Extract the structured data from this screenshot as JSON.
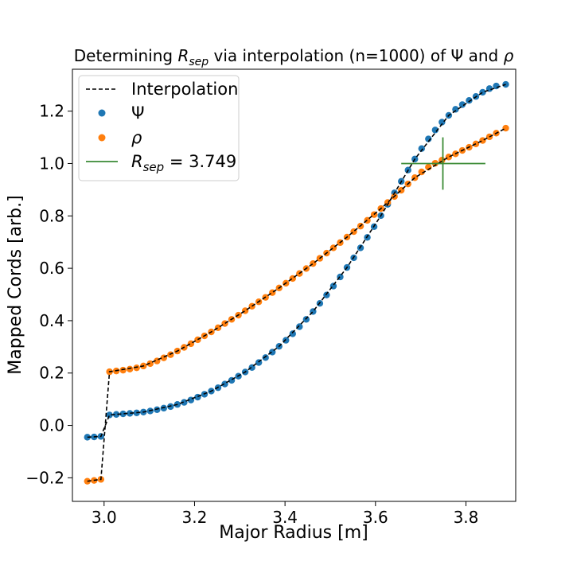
{
  "chart_data": {
    "type": "line",
    "title": {
      "prefix": "Determining ",
      "var_main": "R",
      "var_sub": "sep",
      "suffix": " via interpolation (n=1000) of Ψ and ",
      "rho": "ρ"
    },
    "xlabel": "Major Radius [m]",
    "ylabel": "Mapped Cords [arb.]",
    "xlim": [
      2.93,
      3.91
    ],
    "ylim": [
      -0.29,
      1.36
    ],
    "xticks": [
      {
        "value": 3.0,
        "label": "3.0"
      },
      {
        "value": 3.2,
        "label": "3.2"
      },
      {
        "value": 3.4,
        "label": "3.4"
      },
      {
        "value": 3.6,
        "label": "3.6"
      },
      {
        "value": 3.8,
        "label": "3.8"
      }
    ],
    "yticks": [
      {
        "value": -0.2,
        "label": "−0.2"
      },
      {
        "value": 0.0,
        "label": "0.0"
      },
      {
        "value": 0.2,
        "label": "0.2"
      },
      {
        "value": 0.4,
        "label": "0.4"
      },
      {
        "value": 0.6,
        "label": "0.6"
      },
      {
        "value": 0.8,
        "label": "0.8"
      },
      {
        "value": 1.0,
        "label": "1.0"
      },
      {
        "value": 1.2,
        "label": "1.2"
      }
    ],
    "series": [
      {
        "name": "Ψ",
        "color": "#1f77b4",
        "points": [
          [
            2.963,
            -0.045
          ],
          [
            2.978,
            -0.044
          ],
          [
            2.993,
            -0.042
          ],
          [
            3.012,
            0.04
          ],
          [
            3.027,
            0.042
          ],
          [
            3.042,
            0.044
          ],
          [
            3.057,
            0.046
          ],
          [
            3.072,
            0.048
          ],
          [
            3.087,
            0.051
          ],
          [
            3.102,
            0.055
          ],
          [
            3.117,
            0.06
          ],
          [
            3.132,
            0.066
          ],
          [
            3.147,
            0.072
          ],
          [
            3.162,
            0.08
          ],
          [
            3.177,
            0.088
          ],
          [
            3.192,
            0.097
          ],
          [
            3.207,
            0.108
          ],
          [
            3.222,
            0.119
          ],
          [
            3.237,
            0.131
          ],
          [
            3.252,
            0.144
          ],
          [
            3.267,
            0.158
          ],
          [
            3.282,
            0.172
          ],
          [
            3.297,
            0.188
          ],
          [
            3.312,
            0.204
          ],
          [
            3.327,
            0.221
          ],
          [
            3.342,
            0.24
          ],
          [
            3.357,
            0.259
          ],
          [
            3.372,
            0.28
          ],
          [
            3.387,
            0.302
          ],
          [
            3.402,
            0.325
          ],
          [
            3.417,
            0.35
          ],
          [
            3.432,
            0.377
          ],
          [
            3.447,
            0.405
          ],
          [
            3.462,
            0.435
          ],
          [
            3.477,
            0.466
          ],
          [
            3.492,
            0.498
          ],
          [
            3.507,
            0.532
          ],
          [
            3.522,
            0.567
          ],
          [
            3.537,
            0.603
          ],
          [
            3.552,
            0.64
          ],
          [
            3.567,
            0.678
          ],
          [
            3.582,
            0.718
          ],
          [
            3.597,
            0.759
          ],
          [
            3.612,
            0.801
          ],
          [
            3.627,
            0.844
          ],
          [
            3.642,
            0.888
          ],
          [
            3.657,
            0.932
          ],
          [
            3.672,
            0.975
          ],
          [
            3.687,
            1.017
          ],
          [
            3.702,
            1.057
          ],
          [
            3.717,
            1.094
          ],
          [
            3.732,
            1.128
          ],
          [
            3.747,
            1.158
          ],
          [
            3.762,
            1.184
          ],
          [
            3.777,
            1.207
          ],
          [
            3.792,
            1.225
          ],
          [
            3.807,
            1.241
          ],
          [
            3.822,
            1.256
          ],
          [
            3.837,
            1.272
          ],
          [
            3.852,
            1.286
          ],
          [
            3.867,
            1.296
          ],
          [
            3.888,
            1.302
          ]
        ],
        "interp": [
          [
            2.963,
            -0.045
          ],
          [
            2.993,
            -0.042
          ],
          [
            3.012,
            0.04
          ],
          [
            3.087,
            0.051
          ],
          [
            3.162,
            0.08
          ],
          [
            3.237,
            0.131
          ],
          [
            3.312,
            0.204
          ],
          [
            3.387,
            0.302
          ],
          [
            3.462,
            0.435
          ],
          [
            3.537,
            0.603
          ],
          [
            3.612,
            0.801
          ],
          [
            3.687,
            1.017
          ],
          [
            3.762,
            1.184
          ],
          [
            3.837,
            1.272
          ],
          [
            3.888,
            1.302
          ]
        ]
      },
      {
        "name": "ρ",
        "color": "#ff7f0e",
        "points": [
          [
            2.963,
            -0.213
          ],
          [
            2.978,
            -0.21
          ],
          [
            2.993,
            -0.206
          ],
          [
            3.012,
            0.205
          ],
          [
            3.027,
            0.208
          ],
          [
            3.042,
            0.211
          ],
          [
            3.057,
            0.215
          ],
          [
            3.072,
            0.22
          ],
          [
            3.087,
            0.227
          ],
          [
            3.102,
            0.236
          ],
          [
            3.117,
            0.246
          ],
          [
            3.132,
            0.258
          ],
          [
            3.147,
            0.27
          ],
          [
            3.162,
            0.284
          ],
          [
            3.177,
            0.298
          ],
          [
            3.192,
            0.312
          ],
          [
            3.207,
            0.327
          ],
          [
            3.222,
            0.342
          ],
          [
            3.237,
            0.357
          ],
          [
            3.252,
            0.373
          ],
          [
            3.267,
            0.389
          ],
          [
            3.282,
            0.405
          ],
          [
            3.297,
            0.421
          ],
          [
            3.312,
            0.438
          ],
          [
            3.327,
            0.455
          ],
          [
            3.342,
            0.472
          ],
          [
            3.357,
            0.489
          ],
          [
            3.372,
            0.507
          ],
          [
            3.387,
            0.525
          ],
          [
            3.402,
            0.543
          ],
          [
            3.417,
            0.561
          ],
          [
            3.432,
            0.58
          ],
          [
            3.447,
            0.599
          ],
          [
            3.462,
            0.618
          ],
          [
            3.477,
            0.638
          ],
          [
            3.492,
            0.658
          ],
          [
            3.507,
            0.678
          ],
          [
            3.522,
            0.698
          ],
          [
            3.537,
            0.719
          ],
          [
            3.552,
            0.74
          ],
          [
            3.567,
            0.761
          ],
          [
            3.582,
            0.783
          ],
          [
            3.597,
            0.805
          ],
          [
            3.612,
            0.828
          ],
          [
            3.627,
            0.851
          ],
          [
            3.642,
            0.874
          ],
          [
            3.657,
            0.898
          ],
          [
            3.672,
            0.922
          ],
          [
            3.687,
            0.946
          ],
          [
            3.702,
            0.968
          ],
          [
            3.717,
            0.986
          ],
          [
            3.732,
            1.001
          ],
          [
            3.747,
            1.013
          ],
          [
            3.762,
            1.025
          ],
          [
            3.777,
            1.037
          ],
          [
            3.792,
            1.05
          ],
          [
            3.807,
            1.062
          ],
          [
            3.822,
            1.075
          ],
          [
            3.837,
            1.088
          ],
          [
            3.852,
            1.102
          ],
          [
            3.867,
            1.116
          ],
          [
            3.888,
            1.135
          ]
        ],
        "interp": [
          [
            2.963,
            -0.213
          ],
          [
            2.993,
            -0.206
          ],
          [
            3.012,
            0.205
          ],
          [
            3.087,
            0.227
          ],
          [
            3.162,
            0.284
          ],
          [
            3.237,
            0.357
          ],
          [
            3.312,
            0.438
          ],
          [
            3.387,
            0.525
          ],
          [
            3.462,
            0.618
          ],
          [
            3.537,
            0.719
          ],
          [
            3.612,
            0.828
          ],
          [
            3.687,
            0.946
          ],
          [
            3.762,
            1.025
          ],
          [
            3.837,
            1.088
          ],
          [
            3.888,
            1.135
          ]
        ]
      }
    ],
    "interpolation": {
      "name": "Interpolation",
      "color": "#000000"
    },
    "rsep": {
      "value": 3.749,
      "value_label": "3.749",
      "y": 1.0,
      "h_extent": [
        3.657,
        3.843
      ],
      "v_extent": [
        0.9,
        1.1
      ],
      "color": "#3a8a34",
      "label_main": "R",
      "label_sub": "sep",
      "label_eq": " = "
    },
    "legend": {
      "position": "upper-left"
    }
  }
}
